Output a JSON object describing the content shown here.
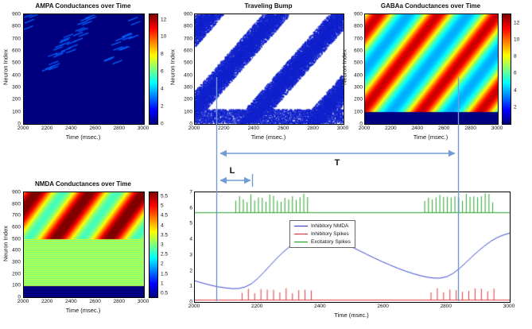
{
  "figure": {
    "background": "#ffffff"
  },
  "colors": {
    "annotation": "#6f9cd4",
    "nmda_line": "#2233cc",
    "inh_spikes": "#dd2222",
    "exc_spikes": "#119911",
    "raster_dot": "#1122cc",
    "heatmap_min": "#000080",
    "heatmap_max": "#800000"
  },
  "panels": {
    "ampa": {
      "title": "AMPA Conductances over Time",
      "xlabel": "Time (msec.)",
      "ylabel": "Neuron Index",
      "x_ticks": [
        "2000",
        "2200",
        "2400",
        "2600",
        "2800",
        "3000"
      ],
      "y_ticks": [
        "0",
        "100",
        "200",
        "300",
        "400",
        "500",
        "600",
        "700",
        "800",
        "900"
      ],
      "colorbar_ticks": [
        "0",
        "2",
        "4",
        "6",
        "8",
        "10",
        "12"
      ]
    },
    "bump": {
      "title": "Traveling Bump",
      "xlabel": "Time (msec.)",
      "ylabel": "Neuron Index",
      "x_ticks": [
        "2000",
        "2200",
        "2400",
        "2600",
        "2800",
        "3000"
      ],
      "y_ticks": [
        "0",
        "100",
        "200",
        "300",
        "400",
        "500",
        "600",
        "700",
        "800",
        "900"
      ]
    },
    "gaba": {
      "title": "GABAa Conductances over Time",
      "xlabel": "Time (msec.)",
      "ylabel": "Neuron Index",
      "x_ticks": [
        "2000",
        "2200",
        "2400",
        "2600",
        "2800",
        "3000"
      ],
      "y_ticks": [
        "0",
        "100",
        "200",
        "300",
        "400",
        "500",
        "600",
        "700",
        "800",
        "900"
      ],
      "colorbar_ticks": [
        "2",
        "4",
        "6",
        "8",
        "10",
        "12"
      ]
    },
    "nmda": {
      "title": "NMDA Conductances over Time",
      "xlabel": "Time (msec.)",
      "ylabel": "Neuron Index",
      "x_ticks": [
        "2000",
        "2200",
        "2400",
        "2600",
        "2800",
        "3000"
      ],
      "y_ticks": [
        "0",
        "100",
        "200",
        "300",
        "400",
        "500",
        "600",
        "700",
        "800",
        "900"
      ],
      "colorbar_ticks": [
        "0.5",
        "1",
        "1.5",
        "2",
        "2.5",
        "3",
        "3.5",
        "4",
        "4.5",
        "5",
        "5.5"
      ]
    },
    "trace": {
      "xlabel": "Time (msec.)",
      "x_ticks": [
        "2000",
        "2200",
        "2400",
        "2600",
        "2800",
        "3000"
      ],
      "y_ticks": [
        "0",
        "1",
        "2",
        "3",
        "4",
        "5",
        "6",
        "7"
      ],
      "legend": [
        "Inhibitory NMDA",
        "Inhibitory Spikes",
        "Excitatory Spikes"
      ]
    }
  },
  "annotations": {
    "t_label": "T",
    "l_label": "L"
  },
  "chart_data": [
    {
      "id": "ampa",
      "type": "heatmap",
      "title": "AMPA Conductances over Time",
      "x_range": [
        2000,
        3000
      ],
      "y_range": [
        0,
        900
      ],
      "colormap": "jet",
      "value_range": [
        0,
        12.6
      ],
      "colorbar_ticks": [
        0,
        2,
        4,
        6,
        8,
        10,
        12
      ],
      "pattern": {
        "background_value": 0,
        "streak_value": 2.8,
        "band_bases": [
          1450,
          1900,
          2350
        ],
        "slope_n_per_ms": 1.3846,
        "streak_count": 58,
        "streak_n_range": [
          420,
          900
        ],
        "streak_len_ms": 80,
        "streak_len_n": 30,
        "jitter_ms": 70,
        "seed": 11
      }
    },
    {
      "id": "bump",
      "type": "scatter",
      "title": "Traveling Bump",
      "x_range": [
        2000,
        3000
      ],
      "y_range": [
        0,
        900
      ],
      "marker": "dot",
      "pattern": {
        "band_bases": [
          1450,
          1900,
          2350,
          2800
        ],
        "slope_n_per_ms": 1.3846,
        "band_half_width_ms": 95,
        "band_sigma_ms": 60,
        "core_density": 0.62,
        "noise_below_n": 115,
        "noise_density": 0.3,
        "seed": 3
      }
    },
    {
      "id": "gaba",
      "type": "heatmap",
      "title": "GABAa Conductances over Time",
      "x_range": [
        2000,
        3000
      ],
      "y_range": [
        0,
        900
      ],
      "colormap": "jet",
      "value_range": [
        0,
        13
      ],
      "colorbar_ticks": [
        2,
        4,
        6,
        8,
        10,
        12
      ],
      "pattern": {
        "strip_below_n": 92,
        "strip_value": 0,
        "band_base_value": 3.3,
        "band_peak": 8.8,
        "band_sigma_ms": 85,
        "band_bases": [
          1450,
          1900,
          2350,
          2800
        ],
        "slope_n_per_ms": 1.3846
      }
    },
    {
      "id": "nmda",
      "type": "heatmap",
      "title": "NMDA Conductances over Time",
      "x_range": [
        2000,
        3000
      ],
      "y_range": [
        0,
        900
      ],
      "colormap": "jet",
      "value_range": [
        0.3,
        5.7
      ],
      "colorbar_ticks": [
        0.5,
        1,
        1.5,
        2,
        2.5,
        3,
        3.5,
        4,
        4.5,
        5,
        5.5
      ],
      "pattern": {
        "strip_below_n": 92,
        "strip_value": 0.3,
        "mid_below_n": 500,
        "mid_value": 3.15,
        "band_base_value": 1.35,
        "band_peak": 4.5,
        "band_sigma_ms": 115,
        "band_bases": [
          1450,
          1900,
          2350,
          2800
        ],
        "slope_n_per_ms": 1.3846
      }
    },
    {
      "id": "trace",
      "type": "line",
      "x_range": [
        2000,
        3000
      ],
      "y_range": [
        0,
        7
      ],
      "xlabel": "Time (msec.)",
      "legend_position": "center-left",
      "series": [
        {
          "name": "Inhibitory NMDA",
          "color_key": "nmda_line",
          "points": [
            [
              2000,
              1.35
            ],
            [
              2050,
              1.05
            ],
            [
              2100,
              0.88
            ],
            [
              2140,
              0.82
            ],
            [
              2180,
              1.1
            ],
            [
              2220,
              1.9
            ],
            [
              2260,
              2.8
            ],
            [
              2300,
              3.55
            ],
            [
              2340,
              4.0
            ],
            [
              2380,
              4.2
            ],
            [
              2420,
              4.15
            ],
            [
              2470,
              3.8
            ],
            [
              2520,
              3.3
            ],
            [
              2570,
              2.8
            ],
            [
              2620,
              2.35
            ],
            [
              2670,
              1.95
            ],
            [
              2720,
              1.65
            ],
            [
              2760,
              1.5
            ],
            [
              2800,
              1.55
            ],
            [
              2840,
              2.1
            ],
            [
              2880,
              2.9
            ],
            [
              2920,
              3.6
            ],
            [
              2960,
              4.15
            ],
            [
              3000,
              4.4
            ]
          ]
        },
        {
          "name": "Inhibitory Spikes",
          "color_key": "inh_spikes",
          "baseline": 0.12,
          "spike_peak_range": [
            0.5,
            0.9
          ],
          "spike_interval_ms": 20,
          "burst_windows": [
            [
              2150,
              2370
            ],
            [
              2750,
              2960
            ]
          ]
        },
        {
          "name": "Excitatory Spikes",
          "color_key": "exc_spikes",
          "baseline": 5.7,
          "spike_peak_range": [
            6.35,
            6.95
          ],
          "spike_interval_ms": 12,
          "burst_windows": [
            [
              2130,
              2360
            ],
            [
              2730,
              2950
            ]
          ]
        }
      ]
    }
  ]
}
